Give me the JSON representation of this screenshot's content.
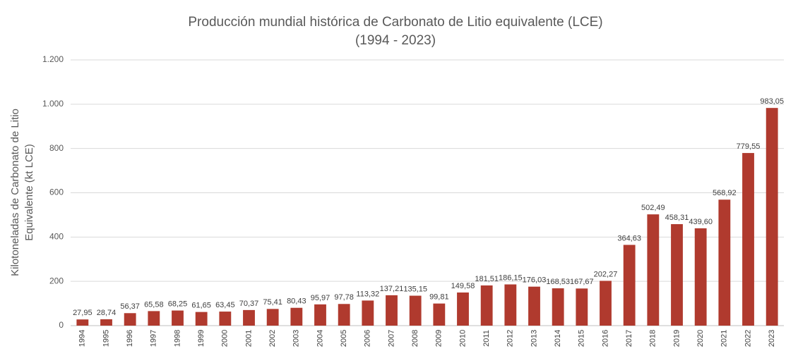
{
  "chart_data": {
    "type": "bar",
    "title": "Producción mundial histórica de Carbonato de Litio equivalente (LCE)",
    "subtitle": "(1994 - 2023)",
    "y_label": [
      "Kilotoneladas de Carbonato de Litio",
      "Equivalente (kt LCE)"
    ],
    "categories": [
      "1994",
      "1995",
      "1996",
      "1997",
      "1998",
      "1999",
      "2000",
      "2001",
      "2002",
      "2003",
      "2004",
      "2005",
      "2006",
      "2007",
      "2008",
      "2009",
      "2010",
      "2011",
      "2012",
      "2013",
      "2014",
      "2015",
      "2016",
      "2017",
      "2018",
      "2019",
      "2020",
      "2021",
      "2022",
      "2023"
    ],
    "values": [
      27.95,
      28.74,
      56.37,
      65.58,
      68.25,
      61.65,
      63.45,
      70.37,
      75.41,
      80.43,
      95.97,
      97.78,
      113.32,
      137.21,
      135.15,
      99.81,
      149.58,
      181.51,
      186.15,
      176.03,
      168.53,
      167.67,
      202.27,
      364.63,
      502.49,
      458.31,
      439.6,
      568.92,
      779.55,
      983.05
    ],
    "value_labels": [
      "27,95",
      "28,74",
      "56,37",
      "65,58",
      "68,25",
      "61,65",
      "63,45",
      "70,37",
      "75,41",
      "80,43",
      "95,97",
      "97,78",
      "113,32",
      "137,21",
      "135,15",
      "99,81",
      "149,58",
      "181,51",
      "186,15",
      "176,03",
      "168,53",
      "167,67",
      "202,27",
      "364,63",
      "502,49",
      "458,31",
      "439,60",
      "568,92",
      "779,55",
      "983,05"
    ],
    "color": "#b03a2e",
    "ylim": [
      0,
      1200
    ],
    "yticks": [
      0,
      200,
      400,
      600,
      800,
      {
        "value": 1000,
        "label": "1.000"
      },
      {
        "value": 1200,
        "label": "1.200"
      }
    ],
    "grid": true
  }
}
